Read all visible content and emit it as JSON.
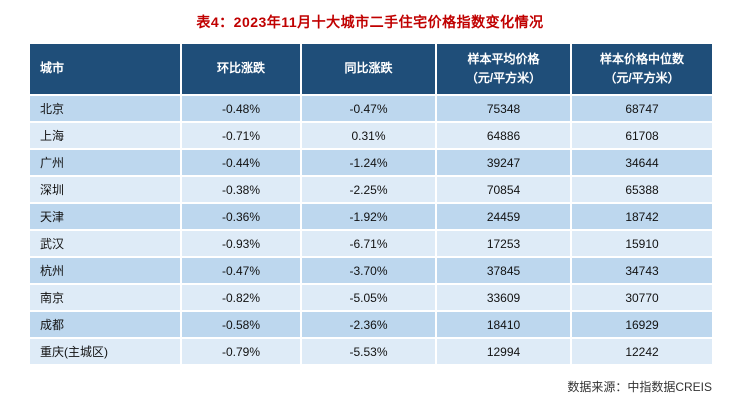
{
  "title": "表4：2023年11月十大城市二手住宅价格指数变化情况",
  "source": "数据来源：中指数据CREIS",
  "colors": {
    "title_red": "#c00000",
    "header_bg": "#1f4e79",
    "row_odd": "#bdd7ee",
    "row_even": "#deebf7",
    "grid": "#ffffff"
  },
  "chart_data": {
    "type": "table",
    "title": "表4：2023年11月十大城市二手住宅价格指数变化情况",
    "columns": [
      "城市",
      "环比涨跌",
      "同比涨跌",
      "样本平均价格\n（元/平方米）",
      "样本价格中位数\n（元/平方米）"
    ],
    "rows": [
      [
        "北京",
        "-0.48%",
        "-0.47%",
        "75348",
        "68747"
      ],
      [
        "上海",
        "-0.71%",
        "0.31%",
        "64886",
        "61708"
      ],
      [
        "广州",
        "-0.44%",
        "-1.24%",
        "39247",
        "34644"
      ],
      [
        "深圳",
        "-0.38%",
        "-2.25%",
        "70854",
        "65388"
      ],
      [
        "天津",
        "-0.36%",
        "-1.92%",
        "24459",
        "18742"
      ],
      [
        "武汉",
        "-0.93%",
        "-6.71%",
        "17253",
        "15910"
      ],
      [
        "杭州",
        "-0.47%",
        "-3.70%",
        "37845",
        "34743"
      ],
      [
        "南京",
        "-0.82%",
        "-5.05%",
        "33609",
        "30770"
      ],
      [
        "成都",
        "-0.58%",
        "-2.36%",
        "18410",
        "16929"
      ],
      [
        "重庆(主城区)",
        "-0.79%",
        "-5.53%",
        "12994",
        "12242"
      ]
    ],
    "source_note": "数据来源：中指数据CREIS"
  }
}
